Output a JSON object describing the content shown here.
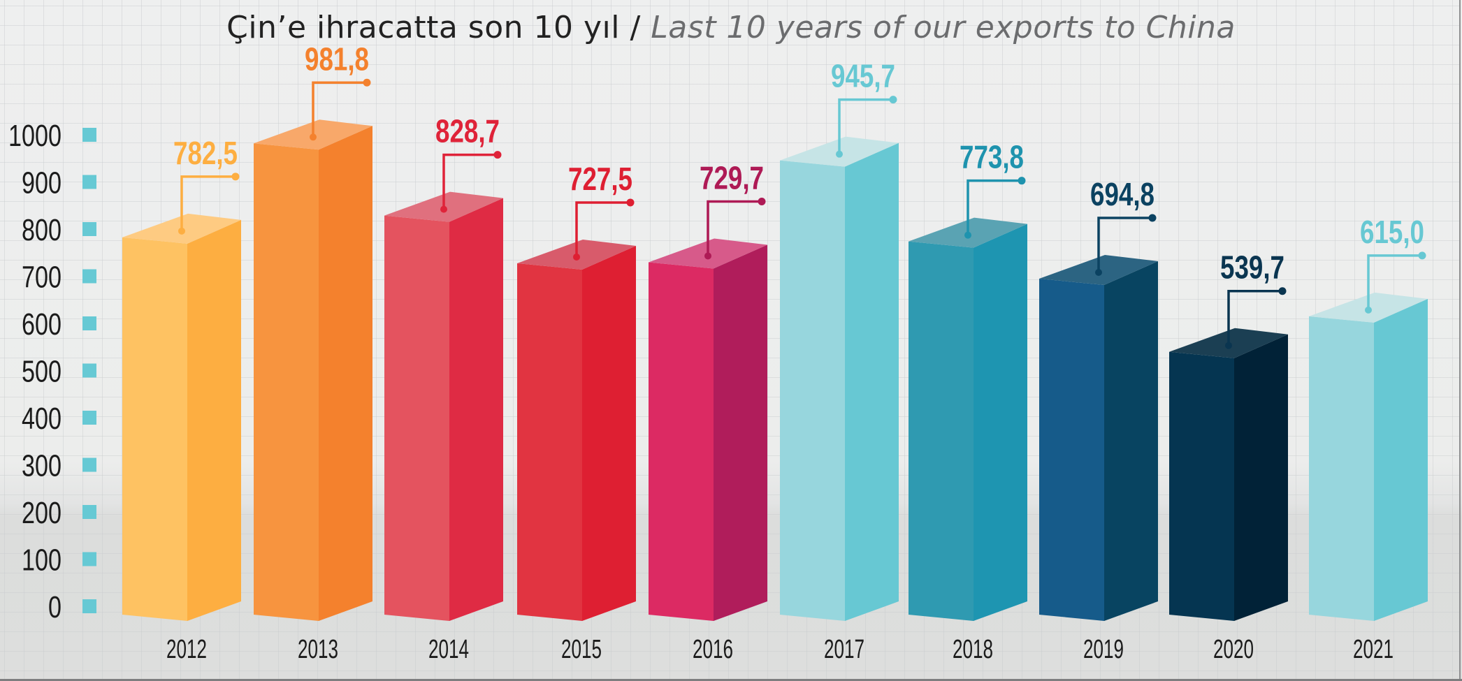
{
  "title": {
    "turkish": "Çin’e ihracatta son 10 yıl /",
    "english": "Last 10 years of our exports to China"
  },
  "chart_data": {
    "type": "bar",
    "title": "Çin’e ihracatta son 10 yıl / Last 10 years of our exports to China",
    "xlabel": "",
    "ylabel": "",
    "ylim": [
      0,
      1000
    ],
    "yticks": [
      0,
      100,
      200,
      300,
      400,
      500,
      600,
      700,
      800,
      900,
      1000
    ],
    "ytick_labels": [
      "0",
      "100",
      "200",
      "300",
      "400",
      "500",
      "600",
      "700",
      "800",
      "900",
      "1000"
    ],
    "tick_marker_color": "#66c9d4",
    "grid": true,
    "style": "3d-bars",
    "categories": [
      "2012",
      "2013",
      "2014",
      "2015",
      "2016",
      "2017",
      "2018",
      "2019",
      "2020",
      "2021"
    ],
    "values": [
      782.5,
      981.8,
      828.7,
      727.5,
      729.7,
      945.7,
      773.8,
      694.8,
      539.7,
      615.0
    ],
    "data_labels": [
      "782,5",
      "981,8",
      "828,7",
      "727,5",
      "729,7",
      "945,7",
      "773,8",
      "694,8",
      "539,7",
      "615,0"
    ],
    "bar_colors": [
      {
        "front": "#fec262",
        "side": "#fdae41",
        "top": "#fecb82",
        "label": "#fdae41"
      },
      {
        "front": "#f7943f",
        "side": "#f4812d",
        "top": "#f8a86a",
        "label": "#f4812d"
      },
      {
        "front": "#e4535f",
        "side": "#df2b44",
        "top": "#e0707e",
        "label": "#df2339"
      },
      {
        "front": "#e13441",
        "side": "#de1f32",
        "top": "#d85b6b",
        "label": "#de1f32"
      },
      {
        "front": "#dc2a63",
        "side": "#b01d5b",
        "top": "#d75a8a",
        "label": "#ae1a55"
      },
      {
        "front": "#97d6dd",
        "side": "#67c8d3",
        "top": "#c6e4e6",
        "label": "#67c8d3"
      },
      {
        "front": "#2f9ab1",
        "side": "#1e95b1",
        "top": "#5aa3b3",
        "label": "#1e93ae"
      },
      {
        "front": "#165b8a",
        "side": "#084461",
        "top": "#2c6482",
        "label": "#0b4261"
      },
      {
        "front": "#053551",
        "side": "#012237",
        "top": "#1b3f53",
        "label": "#0a3550"
      },
      {
        "front": "#97d6dd",
        "side": "#67c8d3",
        "top": "#c6e4e6",
        "label": "#67c8d3"
      }
    ]
  }
}
